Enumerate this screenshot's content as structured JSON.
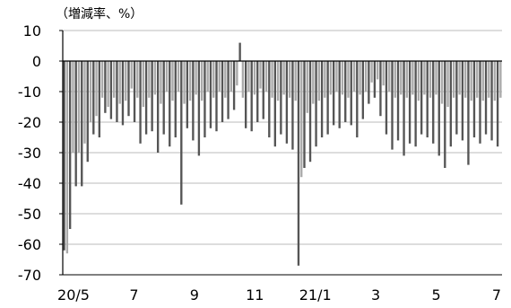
{
  "chart_data": {
    "type": "bar",
    "unit_label": "（増減率、%）",
    "ylim": [
      -70,
      10
    ],
    "yticks": [
      "10",
      "0",
      "-10",
      "-20",
      "-30",
      "-40",
      "-50",
      "-60",
      "-70"
    ],
    "xticks": [
      "20/5",
      "7",
      "9",
      "11",
      "21/1",
      "3",
      "5",
      "7"
    ],
    "grid": true,
    "colors": {
      "dark": "#555555",
      "light": "#aaaaaa",
      "grid": "#bbbbbb",
      "axis": "#000000"
    },
    "series": [
      {
        "values": [
          -62,
          -63,
          -55,
          -30,
          -41,
          -30,
          -41,
          -27,
          -33,
          -20,
          -24,
          -18,
          -25,
          -12,
          -17,
          -15,
          -19,
          -12,
          -20,
          -14,
          -21,
          -13,
          -18,
          -9,
          -20,
          -12,
          -27,
          -15,
          -24,
          -12,
          -23,
          -11,
          -30,
          -14,
          -24,
          -10,
          -28,
          -13,
          -25,
          -10,
          -47,
          -14,
          -22,
          -13,
          -26,
          -11,
          -31,
          -13,
          -25,
          -10,
          -22,
          -12,
          -23,
          -10,
          -20,
          -12,
          -19,
          -10,
          -16,
          -8,
          6,
          -12,
          -22,
          -10,
          -23,
          -11,
          -20,
          -9,
          -19,
          -10,
          -25,
          -12,
          -28,
          -13,
          -24,
          -11,
          -27,
          -12,
          -29,
          -13,
          -67,
          -38,
          -35,
          -17,
          -33,
          -14,
          -28,
          -13,
          -25,
          -12,
          -24,
          -11,
          -21,
          -10,
          -22,
          -11,
          -20,
          -12,
          -21,
          -10,
          -25,
          -11,
          -19,
          -10,
          -14,
          -7,
          -12,
          -6,
          -18,
          -8,
          -24,
          -10,
          -29,
          -12,
          -26,
          -11,
          -31,
          -12,
          -27,
          -11,
          -28,
          -13,
          -24,
          -11,
          -25,
          -12,
          -27,
          -11,
          -31,
          -14,
          -35,
          -15,
          -28,
          -12,
          -24,
          -11,
          -26,
          -12,
          -34,
          -13,
          -25,
          -12,
          -27,
          -13,
          -24,
          -12,
          -26,
          -13,
          -28,
          -12
        ]
      }
    ]
  }
}
